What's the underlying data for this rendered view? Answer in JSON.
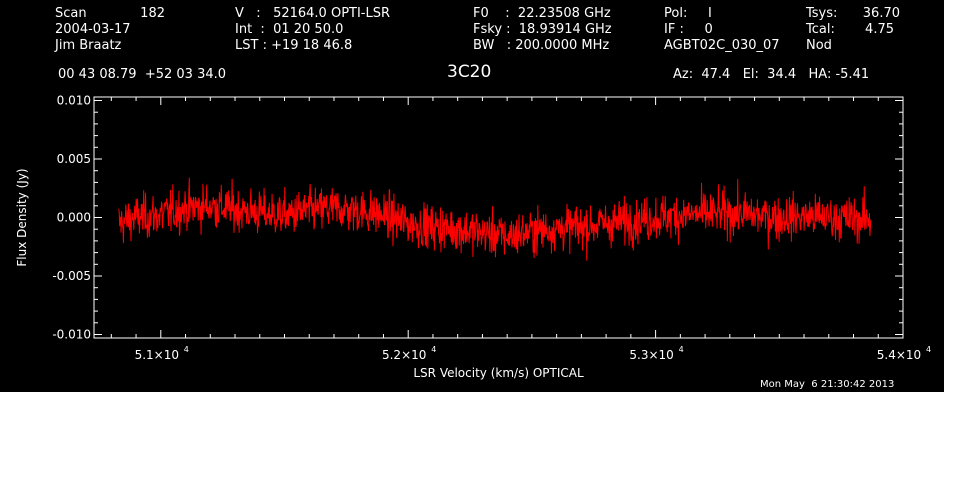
{
  "header": {
    "col1": {
      "line1_label": "Scan",
      "line1_value": "182",
      "line2": "2004-03-17",
      "line3": "Jim Braatz"
    },
    "col2": {
      "line1": "V   :   52164.0 OPTI-LSR",
      "line2": "Int  :  01 20 50.0",
      "line3": "LST : +19 18 46.8"
    },
    "col3": {
      "line1": "F0    :  22.23508 GHz",
      "line2": "Fsky :  18.93914 GHz",
      "line3": "BW   : 200.0000 MHz"
    },
    "col4": {
      "line1": "Pol:     I",
      "line2": "IF :     0",
      "line3": "AGBT02C_030_07"
    },
    "col5": {
      "line1_label": "Tsys:",
      "line1_value": "36.70",
      "line2_label": "Tcal:",
      "line2_value": "4.75",
      "line3": "Nod"
    },
    "coords": "00 43 08.79  +52 03 34.0",
    "source": "3C20",
    "azelha": "Az:  47.4   El:  34.4   HA: -5.41"
  },
  "timestamp": "Mon May  6 21:30:42 2013",
  "colors": {
    "background": "#000000",
    "axes": "#ffffff",
    "trace": "#ff0000",
    "page": "#ffffff"
  },
  "chart_data": {
    "type": "line",
    "title": "",
    "xlabel": "LSR Velocity (km/s) OPTICAL",
    "ylabel": "Flux Density (Jy)",
    "xlim": [
      50730,
      54000
    ],
    "ylim": [
      -0.0103,
      0.0103
    ],
    "x_ticks": [
      {
        "value": 51000,
        "mantissa": "5.1×10",
        "exp": "4"
      },
      {
        "value": 52000,
        "mantissa": "5.2×10",
        "exp": "4"
      },
      {
        "value": 53000,
        "mantissa": "5.3×10",
        "exp": "4"
      },
      {
        "value": 54000,
        "mantissa": "5.4×10",
        "exp": "4"
      }
    ],
    "y_ticks": [
      {
        "value": -0.01,
        "label": "-0.010"
      },
      {
        "value": -0.005,
        "label": "-0.005"
      },
      {
        "value": 0.0,
        "label": "0.000"
      },
      {
        "value": 0.005,
        "label": "0.005"
      },
      {
        "value": 0.01,
        "label": "0.010"
      }
    ],
    "series": [
      {
        "color": "#ff0000",
        "baseline_x": [
          50830,
          50900,
          51000,
          51100,
          51200,
          51300,
          51400,
          51500,
          51600,
          51700,
          51800,
          51900,
          52000,
          52100,
          52200,
          52300,
          52400,
          52500,
          52600,
          52700,
          52800,
          52900,
          53000,
          53100,
          53200,
          53300,
          53400,
          53500,
          53600,
          53700,
          53800,
          53870
        ],
        "baseline_y": [
          -0.0005,
          0.0,
          0.0002,
          0.0008,
          0.001,
          0.0007,
          0.0004,
          0.0002,
          0.0006,
          0.0008,
          0.0006,
          0.0002,
          -0.0005,
          -0.0008,
          -0.001,
          -0.0013,
          -0.0016,
          -0.0012,
          -0.0009,
          -0.0008,
          -0.0005,
          -0.0003,
          0.0,
          0.0002,
          0.0003,
          0.0004,
          0.0002,
          0.0,
          0.0001,
          0.0,
          -0.0001,
          -0.0002
        ],
        "noise_rms": 0.0017,
        "channels": 1600
      }
    ]
  }
}
